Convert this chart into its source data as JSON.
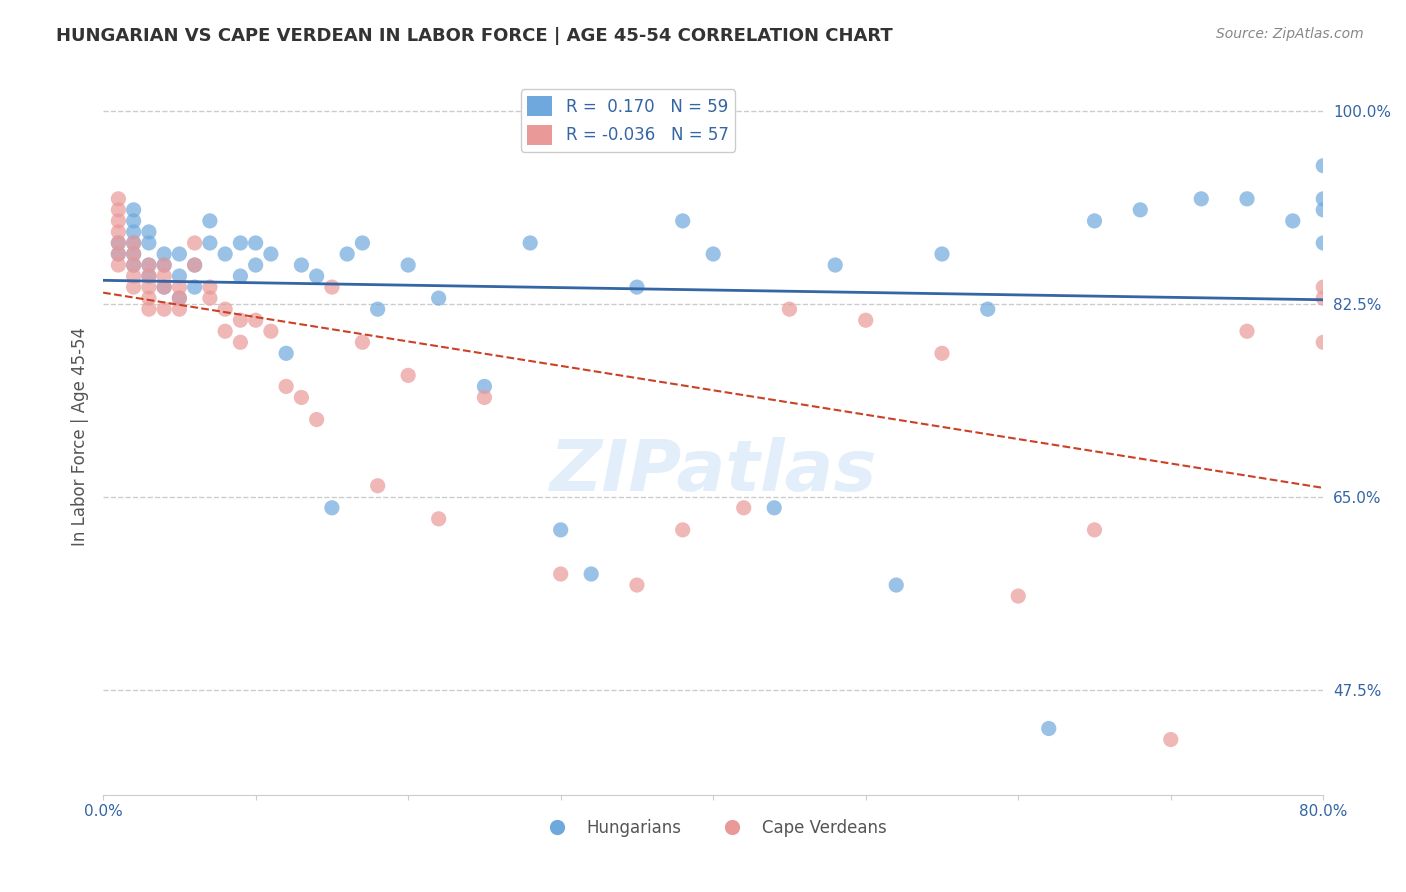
{
  "title": "HUNGARIAN VS CAPE VERDEAN IN LABOR FORCE | AGE 45-54 CORRELATION CHART",
  "source_text": "Source: ZipAtlas.com",
  "xlabel": "",
  "ylabel": "In Labor Force | Age 45-54",
  "xlim": [
    0.0,
    0.8
  ],
  "ylim": [
    0.38,
    1.03
  ],
  "xticks": [
    0.0,
    0.1,
    0.2,
    0.3,
    0.4,
    0.5,
    0.6,
    0.7,
    0.8
  ],
  "xticklabels": [
    "0.0%",
    "",
    "",
    "",
    "",
    "",
    "",
    "",
    "80.0%"
  ],
  "ytick_positions": [
    0.475,
    0.65,
    0.825,
    1.0
  ],
  "ytick_labels": [
    "47.5%",
    "65.0%",
    "82.5%",
    "100.0%"
  ],
  "blue_color": "#6fa8dc",
  "pink_color": "#ea9999",
  "blue_line_color": "#3465a4",
  "pink_line_color": "#cc4125",
  "R_blue": 0.17,
  "N_blue": 59,
  "R_pink": -0.036,
  "N_pink": 57,
  "legend_label_blue": "Hungarians",
  "legend_label_pink": "Cape Verdeans",
  "watermark": "ZIPatlas",
  "blue_x": [
    0.01,
    0.01,
    0.02,
    0.02,
    0.02,
    0.02,
    0.02,
    0.02,
    0.03,
    0.03,
    0.03,
    0.03,
    0.04,
    0.04,
    0.04,
    0.05,
    0.05,
    0.05,
    0.06,
    0.06,
    0.07,
    0.07,
    0.08,
    0.09,
    0.09,
    0.1,
    0.1,
    0.11,
    0.12,
    0.13,
    0.14,
    0.15,
    0.16,
    0.17,
    0.18,
    0.2,
    0.22,
    0.25,
    0.28,
    0.3,
    0.32,
    0.35,
    0.38,
    0.4,
    0.44,
    0.48,
    0.52,
    0.55,
    0.58,
    0.62,
    0.65,
    0.68,
    0.72,
    0.75,
    0.78,
    0.8,
    0.8,
    0.8,
    0.8
  ],
  "blue_y": [
    0.87,
    0.88,
    0.86,
    0.87,
    0.88,
    0.89,
    0.9,
    0.91,
    0.85,
    0.86,
    0.88,
    0.89,
    0.84,
    0.86,
    0.87,
    0.83,
    0.85,
    0.87,
    0.84,
    0.86,
    0.88,
    0.9,
    0.87,
    0.85,
    0.88,
    0.86,
    0.88,
    0.87,
    0.78,
    0.86,
    0.85,
    0.64,
    0.87,
    0.88,
    0.82,
    0.86,
    0.83,
    0.75,
    0.88,
    0.62,
    0.58,
    0.84,
    0.9,
    0.87,
    0.64,
    0.86,
    0.57,
    0.87,
    0.82,
    0.44,
    0.9,
    0.91,
    0.92,
    0.92,
    0.9,
    0.88,
    0.91,
    0.92,
    0.95
  ],
  "pink_x": [
    0.01,
    0.01,
    0.01,
    0.01,
    0.01,
    0.01,
    0.01,
    0.02,
    0.02,
    0.02,
    0.02,
    0.02,
    0.03,
    0.03,
    0.03,
    0.03,
    0.03,
    0.04,
    0.04,
    0.04,
    0.04,
    0.05,
    0.05,
    0.05,
    0.06,
    0.06,
    0.07,
    0.07,
    0.08,
    0.08,
    0.09,
    0.09,
    0.1,
    0.11,
    0.12,
    0.13,
    0.14,
    0.15,
    0.17,
    0.18,
    0.2,
    0.22,
    0.25,
    0.3,
    0.35,
    0.38,
    0.42,
    0.45,
    0.5,
    0.55,
    0.6,
    0.65,
    0.7,
    0.75,
    0.8,
    0.8,
    0.8
  ],
  "pink_y": [
    0.92,
    0.91,
    0.9,
    0.89,
    0.88,
    0.87,
    0.86,
    0.88,
    0.87,
    0.86,
    0.85,
    0.84,
    0.86,
    0.85,
    0.84,
    0.83,
    0.82,
    0.86,
    0.85,
    0.84,
    0.82,
    0.84,
    0.83,
    0.82,
    0.88,
    0.86,
    0.84,
    0.83,
    0.82,
    0.8,
    0.81,
    0.79,
    0.81,
    0.8,
    0.75,
    0.74,
    0.72,
    0.84,
    0.79,
    0.66,
    0.76,
    0.63,
    0.74,
    0.58,
    0.57,
    0.62,
    0.64,
    0.82,
    0.81,
    0.78,
    0.56,
    0.62,
    0.43,
    0.8,
    0.79,
    0.83,
    0.84
  ]
}
